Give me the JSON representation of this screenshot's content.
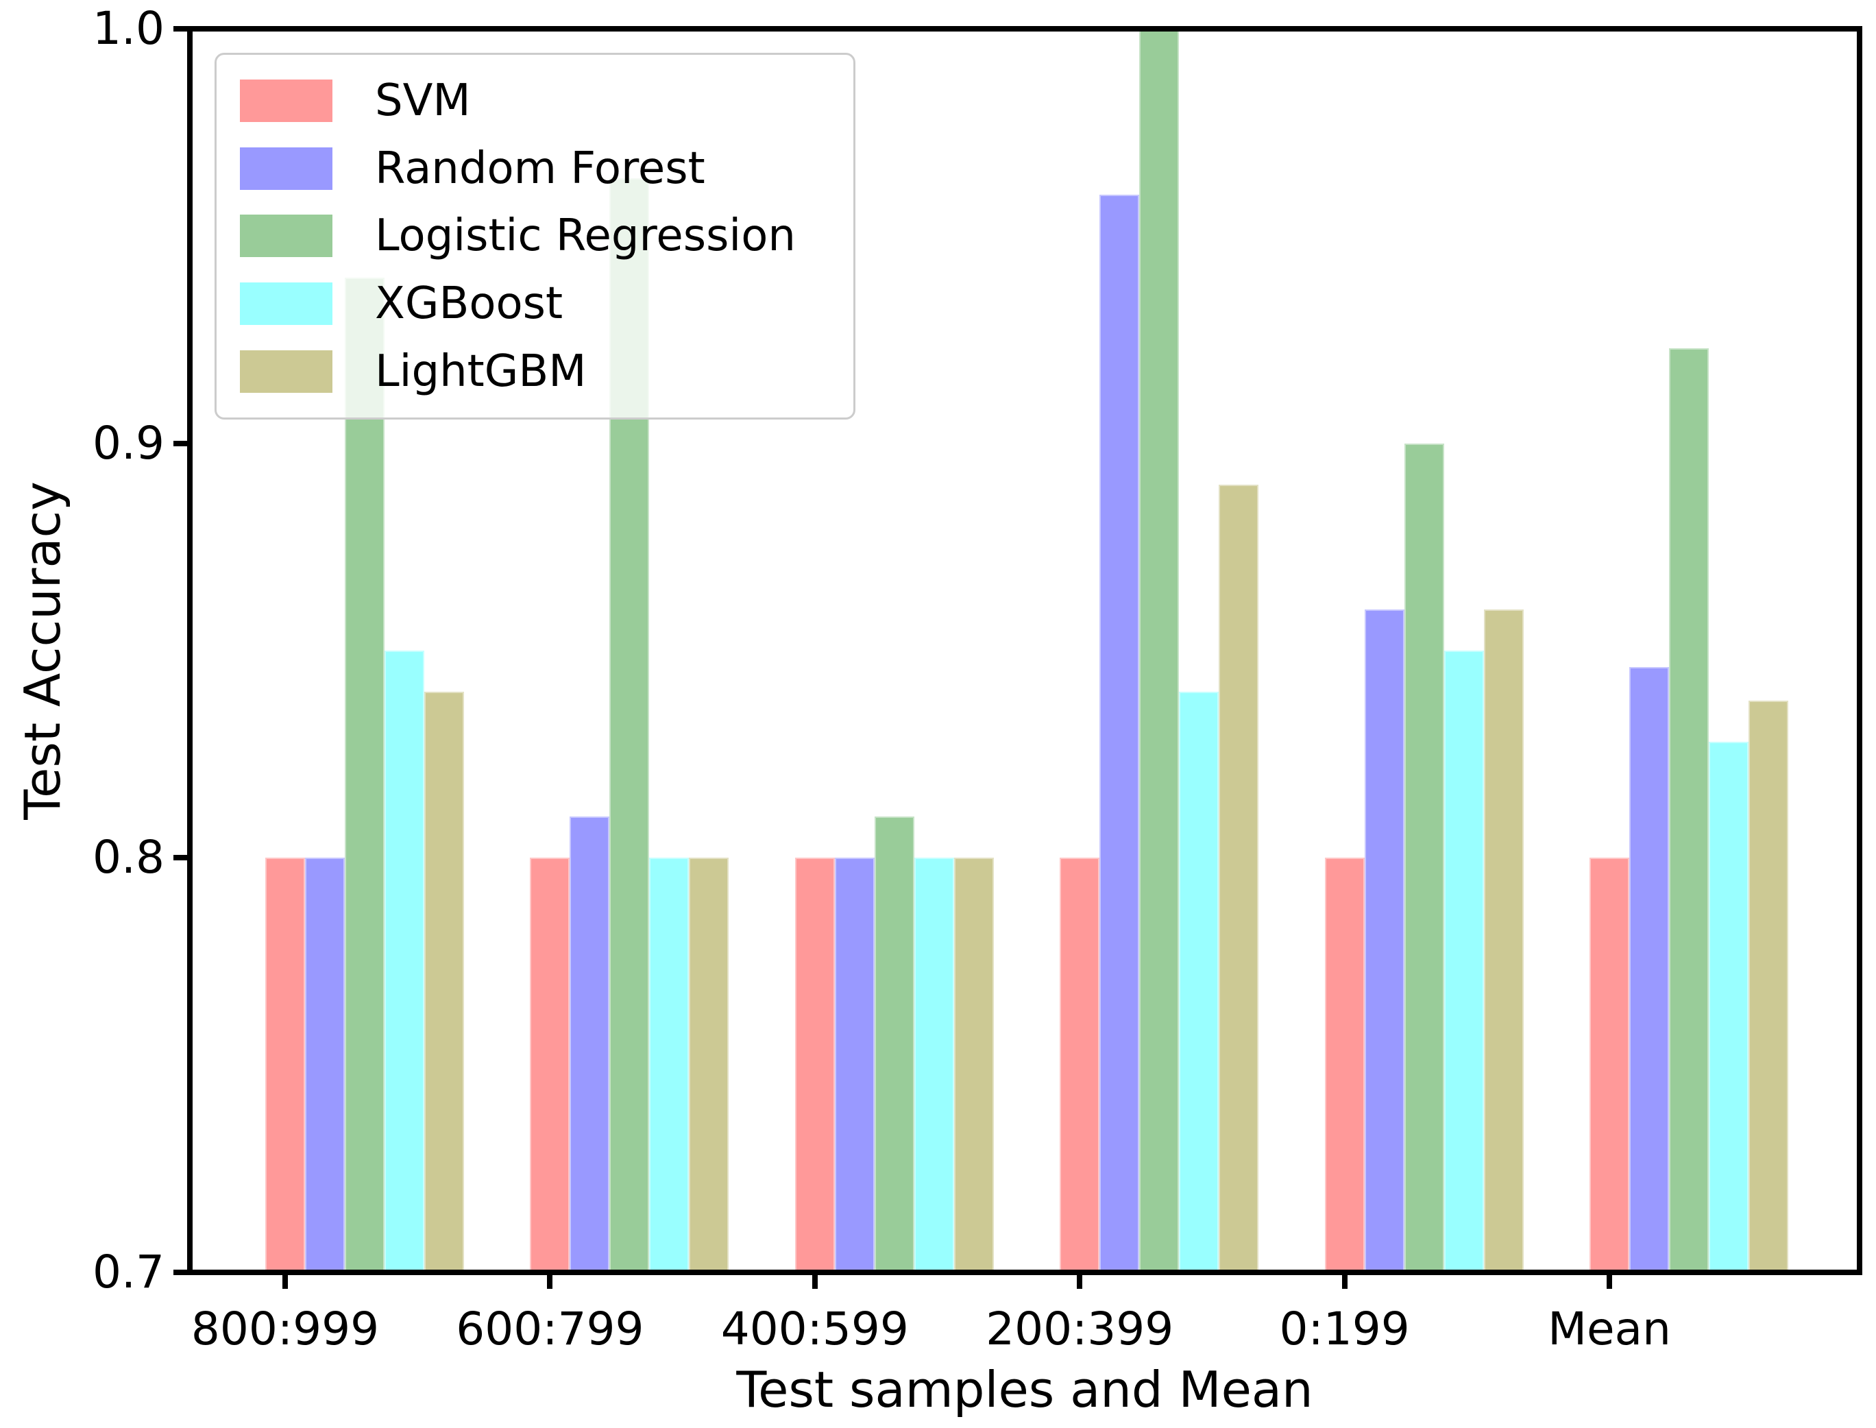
{
  "figure": {
    "background": "#ffffff",
    "text_color": "#000000"
  },
  "chart_data": {
    "type": "bar",
    "title": "",
    "xlabel": "Test samples and Mean",
    "ylabel": "Test Accuracy",
    "categories": [
      "800:999",
      "600:799",
      "400:599",
      "200:399",
      "0:199",
      "Mean"
    ],
    "series": [
      {
        "name": "SVM",
        "color": "#FF9999",
        "values": [
          0.8,
          0.8,
          0.8,
          0.8,
          0.8,
          0.8
        ]
      },
      {
        "name": "Random Forest",
        "color": "#9999FF",
        "values": [
          0.8,
          0.81,
          0.8,
          0.96,
          0.86,
          0.846
        ]
      },
      {
        "name": "Logistic Regression",
        "color": "#99CC99",
        "values": [
          0.94,
          0.964,
          0.81,
          1.0,
          0.9,
          0.923
        ]
      },
      {
        "name": "XGBoost",
        "color": "#99FFFF",
        "values": [
          0.85,
          0.8,
          0.8,
          0.84,
          0.85,
          0.828
        ]
      },
      {
        "name": "LightGBM",
        "color": "#CCC994",
        "values": [
          0.84,
          0.8,
          0.8,
          0.89,
          0.86,
          0.838
        ]
      }
    ],
    "ylim": [
      0.7,
      1.0
    ],
    "yticks": [
      0.7,
      0.8,
      0.9,
      1.0
    ],
    "grid": false,
    "legend_position": "upper left"
  }
}
